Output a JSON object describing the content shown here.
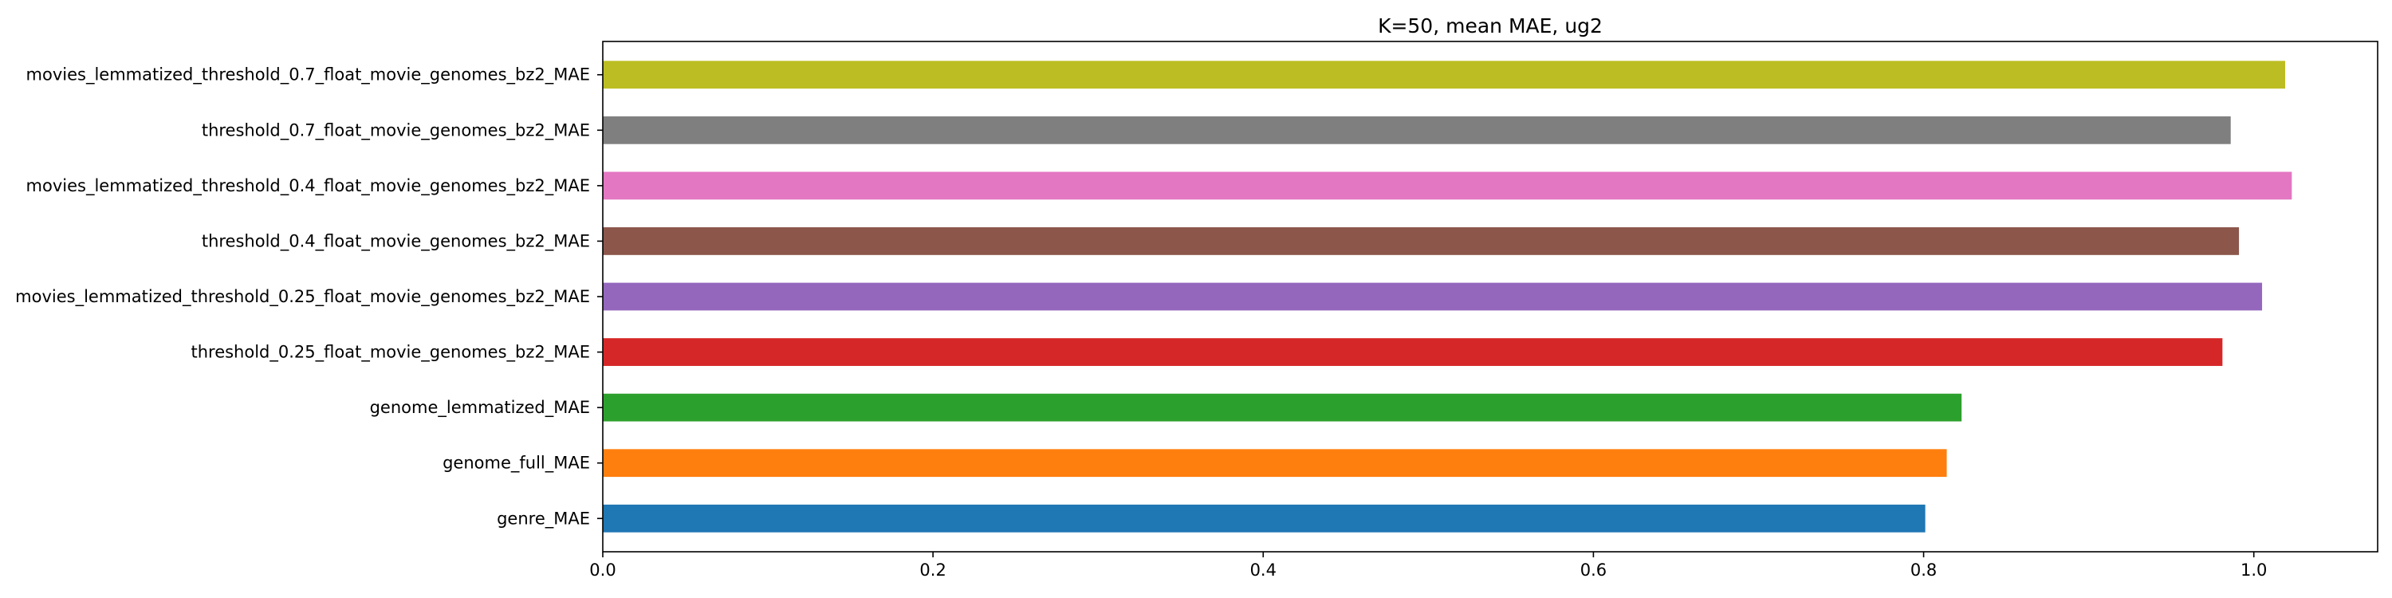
{
  "chart_data": {
    "type": "bar",
    "orientation": "horizontal",
    "title": "K=50, mean MAE, ug2",
    "xlabel": "",
    "ylabel": "",
    "xlim": [
      0,
      1.075
    ],
    "xticks": [
      0.0,
      0.2,
      0.4,
      0.6,
      0.8,
      1.0
    ],
    "xtick_labels": [
      "0.0",
      "0.2",
      "0.4",
      "0.6",
      "0.8",
      "1.0"
    ],
    "grid": false,
    "legend": "none",
    "categories": [
      "genre_MAE",
      "genome_full_MAE",
      "genome_lemmatized_MAE",
      "threshold_0.25_float_movie_genomes_bz2_MAE",
      "movies_lemmatized_threshold_0.25_float_movie_genomes_bz2_MAE",
      "threshold_0.4_float_movie_genomes_bz2_MAE",
      "movies_lemmatized_threshold_0.4_float_movie_genomes_bz2_MAE",
      "threshold_0.7_float_movie_genomes_bz2_MAE",
      "movies_lemmatized_threshold_0.7_float_movie_genomes_bz2_MAE"
    ],
    "values": [
      0.801,
      0.814,
      0.823,
      0.981,
      1.005,
      0.991,
      1.023,
      0.986,
      1.019
    ],
    "colors": [
      "#1f77b4",
      "#ff7f0e",
      "#2ca02c",
      "#d62728",
      "#9467bd",
      "#8c564b",
      "#e377c2",
      "#7f7f7f",
      "#bcbd22"
    ]
  }
}
